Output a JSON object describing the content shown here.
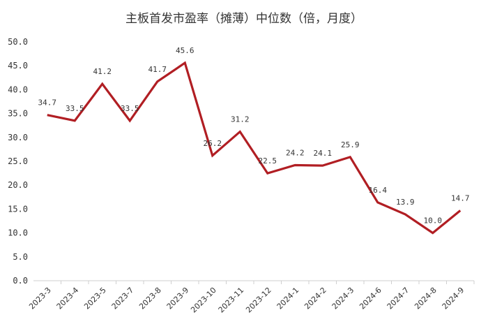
{
  "chart_data": {
    "type": "line",
    "title": "主板首发市盈率（摊薄）中位数（倍，月度）",
    "xlabel": "",
    "ylabel": "",
    "categories": [
      "2023-3",
      "2023-4",
      "2023-5",
      "2023-7",
      "2023-8",
      "2023-9",
      "2023-10",
      "2023-11",
      "2023-12",
      "2024-1",
      "2024-2",
      "2024-3",
      "2024-6",
      "2024-7",
      "2024-8",
      "2024-9"
    ],
    "series": [
      {
        "values": [
          34.7,
          33.5,
          41.2,
          33.5,
          41.7,
          45.6,
          26.2,
          31.2,
          22.5,
          24.2,
          24.1,
          25.9,
          16.4,
          13.9,
          10.0,
          14.7
        ],
        "labels": [
          "34.7",
          "33.5",
          "41.2",
          "33.5",
          "41.7",
          "45.6",
          "26.2",
          "31.2",
          "22.5",
          "24.2",
          "24.1",
          "25.9",
          "16.4",
          "13.9",
          "10.0",
          "14.7"
        ],
        "color": "#b11e23"
      }
    ],
    "yticks": [
      "0.0",
      "5.0",
      "10.0",
      "15.0",
      "20.0",
      "25.0",
      "30.0",
      "35.0",
      "40.0",
      "45.0",
      "50.0"
    ],
    "ylim": [
      0,
      50
    ],
    "grid": false,
    "legend": "none"
  }
}
